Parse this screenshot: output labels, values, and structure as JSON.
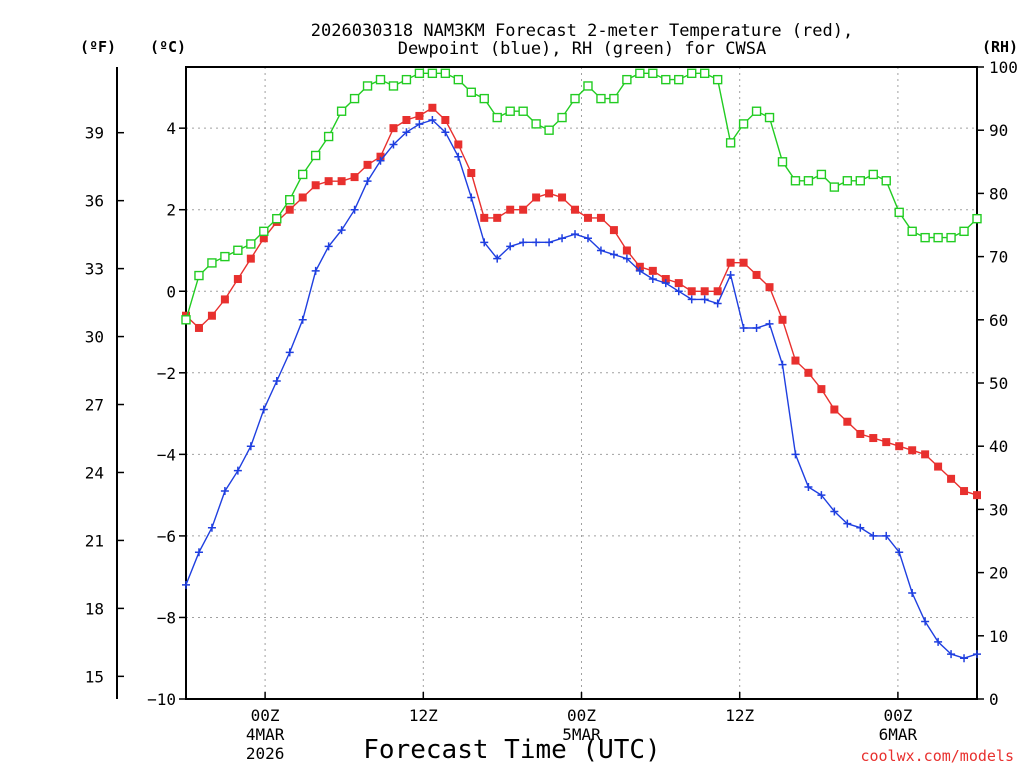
{
  "chart_data": {
    "type": "line",
    "title_line1": "2026030318 NAM3KM Forecast 2-meter Temperature (red),",
    "title_line2": "Dewpoint (blue), RH (green) for CWSA",
    "xlabel": "Forecast Time (UTC)",
    "credit": "coolwx.com/models",
    "units": {
      "left_outer": "(ºF)",
      "left_inner": "(ºC)",
      "right": "(RH)"
    },
    "x_range_hours": [
      0,
      60
    ],
    "x_ticks": [
      {
        "h": 6,
        "line1": "00Z",
        "line2": "4MAR",
        "line3": "2026"
      },
      {
        "h": 18,
        "line1": "12Z",
        "line2": "",
        "line3": ""
      },
      {
        "h": 30,
        "line1": "00Z",
        "line2": "5MAR",
        "line3": ""
      },
      {
        "h": 42,
        "line1": "12Z",
        "line2": "",
        "line3": ""
      },
      {
        "h": 54,
        "line1": "00Z",
        "line2": "6MAR",
        "line3": ""
      }
    ],
    "celsius_axis": {
      "min": -10,
      "max": 5.5,
      "ticks": [
        -10,
        -8,
        -6,
        -4,
        -2,
        0,
        2,
        4
      ]
    },
    "fahrenheit_axis": {
      "ticks": [
        15,
        18,
        21,
        24,
        27,
        30,
        33,
        36,
        39
      ]
    },
    "rh_axis": {
      "min": 0,
      "max": 100,
      "ticks": [
        0,
        10,
        20,
        30,
        40,
        50,
        60,
        70,
        80,
        90,
        100
      ]
    },
    "series": [
      {
        "name": "Temperature",
        "axis": "celsius",
        "color": "#e8302e",
        "marker": "filled-square",
        "values": [
          -0.6,
          -0.9,
          -0.6,
          -0.2,
          0.3,
          0.8,
          1.3,
          1.7,
          2.0,
          2.3,
          2.6,
          2.7,
          2.7,
          2.8,
          3.1,
          3.3,
          4.0,
          4.2,
          4.3,
          4.5,
          4.2,
          3.6,
          2.9,
          1.8,
          1.8,
          2.0,
          2.0,
          2.3,
          2.4,
          2.3,
          2.0,
          1.8,
          1.8,
          1.5,
          1.0,
          0.6,
          0.5,
          0.3,
          0.2,
          0.0,
          0.0,
          0.0,
          0.7,
          0.7,
          0.4,
          0.1,
          -0.7,
          -1.7,
          -2.0,
          -2.4,
          -2.9,
          -3.2,
          -3.5,
          -3.6,
          -3.7,
          -3.8,
          -3.9,
          -4.0,
          -4.3,
          -4.6,
          -4.9,
          -5.0
        ]
      },
      {
        "name": "Dewpoint",
        "axis": "celsius",
        "color": "#1f3fe0",
        "marker": "plus",
        "values": [
          -7.2,
          -6.4,
          -5.8,
          -4.9,
          -4.4,
          -3.8,
          -2.9,
          -2.2,
          -1.5,
          -0.7,
          0.5,
          1.1,
          1.5,
          2.0,
          2.7,
          3.2,
          3.6,
          3.9,
          4.1,
          4.2,
          3.9,
          3.3,
          2.3,
          1.2,
          0.8,
          1.1,
          1.2,
          1.2,
          1.2,
          1.3,
          1.4,
          1.3,
          1.0,
          0.9,
          0.8,
          0.5,
          0.3,
          0.2,
          0.0,
          -0.2,
          -0.2,
          -0.3,
          0.4,
          -0.9,
          -0.9,
          -0.8,
          -1.8,
          -4.0,
          -4.8,
          -5.0,
          -5.4,
          -5.7,
          -5.8,
          -6.0,
          -6.0,
          -6.4,
          -7.4,
          -8.1,
          -8.6,
          -8.9,
          -9.0,
          -8.9
        ]
      },
      {
        "name": "RH",
        "axis": "rh",
        "color": "#22cc22",
        "marker": "open-square",
        "values": [
          60,
          67,
          69,
          70,
          71,
          72,
          74,
          76,
          79,
          83,
          86,
          89,
          93,
          95,
          97,
          98,
          97,
          98,
          99,
          99,
          99,
          98,
          96,
          95,
          92,
          93,
          93,
          91,
          90,
          92,
          95,
          97,
          95,
          95,
          98,
          99,
          99,
          98,
          98,
          99,
          99,
          98,
          88,
          91,
          93,
          92,
          85,
          82,
          82,
          83,
          81,
          82,
          82,
          83,
          82,
          77,
          74,
          73,
          73,
          73,
          74,
          76
        ]
      }
    ]
  }
}
